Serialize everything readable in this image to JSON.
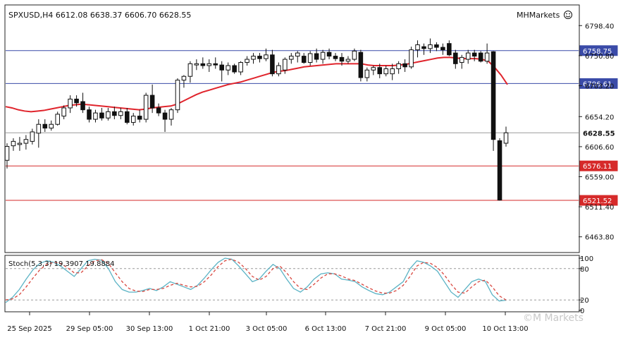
{
  "header": {
    "symbol_info": "SPXUSD,H4  6612.08 6638.37 6606.70 6628.55",
    "brand": "MHMarkets",
    "brand_icon": "smiley-icon",
    "watermark": "©M Markets"
  },
  "chart_data": [
    {
      "type": "candlestick",
      "symbol": "SPXUSD",
      "timeframe": "H4",
      "ohlc_readout": {
        "open": 6612.08,
        "high": 6638.37,
        "low": 6606.7,
        "close": 6628.55
      },
      "ylim": [
        6440,
        6830
      ],
      "y_ticks": [
        "6798.40",
        "6750.80",
        "6703.20",
        "6654.20",
        "6606.60",
        "6559.00",
        "6511.40",
        "6463.80"
      ],
      "x_tick_labels": [
        "25 Sep 2025",
        "29 Sep 05:00",
        "30 Sep 13:00",
        "1 Oct 21:00",
        "3 Oct 05:00",
        "6 Oct 13:00",
        "7 Oct 21:00",
        "9 Oct 05:00",
        "10 Oct 13:00"
      ],
      "candles": [
        {
          "o": 6585,
          "h": 6612,
          "l": 6572,
          "c": 6607
        },
        {
          "o": 6608,
          "h": 6620,
          "l": 6600,
          "c": 6615
        },
        {
          "o": 6610,
          "h": 6622,
          "l": 6600,
          "c": 6612
        },
        {
          "o": 6612,
          "h": 6625,
          "l": 6602,
          "c": 6618
        },
        {
          "o": 6615,
          "h": 6635,
          "l": 6610,
          "c": 6630
        },
        {
          "o": 6628,
          "h": 6650,
          "l": 6605,
          "c": 6642
        },
        {
          "o": 6642,
          "h": 6650,
          "l": 6630,
          "c": 6636
        },
        {
          "o": 6636,
          "h": 6648,
          "l": 6632,
          "c": 6642
        },
        {
          "o": 6642,
          "h": 6662,
          "l": 6640,
          "c": 6658
        },
        {
          "o": 6655,
          "h": 6672,
          "l": 6650,
          "c": 6668
        },
        {
          "o": 6668,
          "h": 6688,
          "l": 6660,
          "c": 6682
        },
        {
          "o": 6682,
          "h": 6688,
          "l": 6670,
          "c": 6676
        },
        {
          "o": 6678,
          "h": 6692,
          "l": 6660,
          "c": 6665
        },
        {
          "o": 6665,
          "h": 6670,
          "l": 6645,
          "c": 6650
        },
        {
          "o": 6650,
          "h": 6665,
          "l": 6645,
          "c": 6660
        },
        {
          "o": 6660,
          "h": 6668,
          "l": 6648,
          "c": 6652
        },
        {
          "o": 6652,
          "h": 6668,
          "l": 6648,
          "c": 6662
        },
        {
          "o": 6662,
          "h": 6670,
          "l": 6650,
          "c": 6656
        },
        {
          "o": 6656,
          "h": 6668,
          "l": 6650,
          "c": 6662
        },
        {
          "o": 6662,
          "h": 6668,
          "l": 6642,
          "c": 6645
        },
        {
          "o": 6645,
          "h": 6660,
          "l": 6640,
          "c": 6655
        },
        {
          "o": 6655,
          "h": 6665,
          "l": 6645,
          "c": 6650
        },
        {
          "o": 6650,
          "h": 6692,
          "l": 6645,
          "c": 6688
        },
        {
          "o": 6688,
          "h": 6705,
          "l": 6660,
          "c": 6668
        },
        {
          "o": 6668,
          "h": 6675,
          "l": 6655,
          "c": 6660
        },
        {
          "o": 6660,
          "h": 6665,
          "l": 6630,
          "c": 6650
        },
        {
          "o": 6650,
          "h": 6668,
          "l": 6640,
          "c": 6665
        },
        {
          "o": 6665,
          "h": 6715,
          "l": 6660,
          "c": 6712
        },
        {
          "o": 6712,
          "h": 6720,
          "l": 6700,
          "c": 6718
        },
        {
          "o": 6718,
          "h": 6742,
          "l": 6708,
          "c": 6738
        },
        {
          "o": 6736,
          "h": 6745,
          "l": 6728,
          "c": 6738
        },
        {
          "o": 6738,
          "h": 6748,
          "l": 6730,
          "c": 6735
        },
        {
          "o": 6735,
          "h": 6745,
          "l": 6725,
          "c": 6738
        },
        {
          "o": 6738,
          "h": 6748,
          "l": 6730,
          "c": 6736
        },
        {
          "o": 6736,
          "h": 6742,
          "l": 6710,
          "c": 6728
        },
        {
          "o": 6728,
          "h": 6740,
          "l": 6720,
          "c": 6735
        },
        {
          "o": 6735,
          "h": 6738,
          "l": 6722,
          "c": 6725
        },
        {
          "o": 6725,
          "h": 6742,
          "l": 6720,
          "c": 6740
        },
        {
          "o": 6740,
          "h": 6750,
          "l": 6735,
          "c": 6745
        },
        {
          "o": 6745,
          "h": 6755,
          "l": 6738,
          "c": 6750
        },
        {
          "o": 6750,
          "h": 6755,
          "l": 6740,
          "c": 6746
        },
        {
          "o": 6746,
          "h": 6762,
          "l": 6742,
          "c": 6752
        },
        {
          "o": 6752,
          "h": 6760,
          "l": 6718,
          "c": 6722
        },
        {
          "o": 6722,
          "h": 6740,
          "l": 6718,
          "c": 6735
        },
        {
          "o": 6728,
          "h": 6748,
          "l": 6722,
          "c": 6745
        },
        {
          "o": 6745,
          "h": 6755,
          "l": 6738,
          "c": 6750
        },
        {
          "o": 6750,
          "h": 6758,
          "l": 6740,
          "c": 6755
        },
        {
          "o": 6750,
          "h": 6755,
          "l": 6738,
          "c": 6740
        },
        {
          "o": 6740,
          "h": 6758,
          "l": 6735,
          "c": 6754
        },
        {
          "o": 6754,
          "h": 6762,
          "l": 6740,
          "c": 6745
        },
        {
          "o": 6745,
          "h": 6760,
          "l": 6738,
          "c": 6756
        },
        {
          "o": 6756,
          "h": 6762,
          "l": 6745,
          "c": 6750
        },
        {
          "o": 6750,
          "h": 6755,
          "l": 6742,
          "c": 6746
        },
        {
          "o": 6748,
          "h": 6755,
          "l": 6735,
          "c": 6742
        },
        {
          "o": 6742,
          "h": 6750,
          "l": 6738,
          "c": 6745
        },
        {
          "o": 6745,
          "h": 6762,
          "l": 6742,
          "c": 6758
        },
        {
          "o": 6756,
          "h": 6760,
          "l": 6710,
          "c": 6716
        },
        {
          "o": 6716,
          "h": 6732,
          "l": 6710,
          "c": 6728
        },
        {
          "o": 6728,
          "h": 6735,
          "l": 6720,
          "c": 6732
        },
        {
          "o": 6732,
          "h": 6738,
          "l": 6715,
          "c": 6722
        },
        {
          "o": 6722,
          "h": 6735,
          "l": 6718,
          "c": 6730
        },
        {
          "o": 6722,
          "h": 6738,
          "l": 6712,
          "c": 6730
        },
        {
          "o": 6730,
          "h": 6742,
          "l": 6722,
          "c": 6738
        },
        {
          "o": 6738,
          "h": 6745,
          "l": 6725,
          "c": 6733
        },
        {
          "o": 6733,
          "h": 6765,
          "l": 6730,
          "c": 6760
        },
        {
          "o": 6760,
          "h": 6775,
          "l": 6748,
          "c": 6768
        },
        {
          "o": 6765,
          "h": 6770,
          "l": 6752,
          "c": 6762
        },
        {
          "o": 6762,
          "h": 6778,
          "l": 6755,
          "c": 6768
        },
        {
          "o": 6768,
          "h": 6772,
          "l": 6758,
          "c": 6764
        },
        {
          "o": 6764,
          "h": 6770,
          "l": 6752,
          "c": 6760
        },
        {
          "o": 6770,
          "h": 6775,
          "l": 6750,
          "c": 6752
        },
        {
          "o": 6755,
          "h": 6760,
          "l": 6730,
          "c": 6738
        },
        {
          "o": 6740,
          "h": 6752,
          "l": 6730,
          "c": 6748
        },
        {
          "o": 6745,
          "h": 6760,
          "l": 6738,
          "c": 6755
        },
        {
          "o": 6755,
          "h": 6760,
          "l": 6742,
          "c": 6750
        },
        {
          "o": 6755,
          "h": 6758,
          "l": 6740,
          "c": 6742
        },
        {
          "o": 6742,
          "h": 6770,
          "l": 6738,
          "c": 6755
        },
        {
          "o": 6757,
          "h": 6758,
          "l": 6600,
          "c": 6618
        },
        {
          "o": 6616,
          "h": 6620,
          "l": 6521,
          "c": 6522
        },
        {
          "o": 6612.08,
          "h": 6638.37,
          "l": 6606.7,
          "c": 6628.55
        }
      ],
      "moving_average": [
        6670,
        6668,
        6665,
        6663,
        6662,
        6663,
        6664,
        6666,
        6668,
        6670,
        6672,
        6673,
        6674,
        6673,
        6672,
        6671,
        6670,
        6669,
        6668,
        6667,
        6666,
        6665,
        6666,
        6668,
        6669,
        6670,
        6671,
        6674,
        6679,
        6684,
        6689,
        6693,
        6696,
        6699,
        6702,
        6705,
        6707,
        6709,
        6712,
        6715,
        6718,
        6721,
        6724,
        6726,
        6727,
        6729,
        6731,
        6733,
        6734,
        6735,
        6736,
        6737,
        6738,
        6738,
        6738,
        6738,
        6738,
        6736,
        6735,
        6735,
        6735,
        6735,
        6736,
        6737,
        6739,
        6741,
        6743,
        6745,
        6747,
        6748,
        6748,
        6747,
        6746,
        6746,
        6746,
        6745,
        6742,
        6732,
        6720,
        6705
      ],
      "ma_color": "#e0242c",
      "levels": [
        {
          "value": 6758.75,
          "label": "6758.75",
          "color": "#3a4ba8"
        },
        {
          "value": 6706.61,
          "label": "6706.61",
          "color": "#3a4ba8"
        },
        {
          "value": 6628.55,
          "label": "6628.55",
          "color": "#9a9a9a"
        },
        {
          "value": 6576.11,
          "label": "6576.11",
          "color": "#d62a2a"
        },
        {
          "value": 6521.52,
          "label": "6521.52",
          "color": "#d62a2a"
        }
      ]
    },
    {
      "type": "line",
      "title": "Stoch(5,3,3) 19.3907 19.8884",
      "ylim": [
        0,
        100
      ],
      "y_ticks": [
        "100",
        "80",
        "20",
        "0"
      ],
      "levels": [
        80,
        20
      ],
      "series": [
        {
          "name": "%K",
          "color": "#5bb3c5",
          "style": "solid",
          "values": [
            15,
            25,
            40,
            60,
            78,
            90,
            95,
            92,
            85,
            75,
            65,
            80,
            95,
            98,
            96,
            80,
            55,
            40,
            35,
            35,
            38,
            42,
            38,
            45,
            55,
            50,
            45,
            40,
            48,
            62,
            78,
            92,
            100,
            98,
            85,
            70,
            55,
            60,
            75,
            88,
            80,
            60,
            42,
            35,
            45,
            60,
            70,
            72,
            70,
            60,
            58,
            55,
            45,
            38,
            32,
            30,
            35,
            45,
            55,
            80,
            95,
            92,
            85,
            75,
            55,
            35,
            25,
            40,
            55,
            60,
            55,
            30,
            18,
            19.39
          ]
        },
        {
          "name": "%D",
          "color": "#d9473f",
          "style": "dashed",
          "values": [
            20,
            22,
            30,
            45,
            62,
            78,
            88,
            92,
            90,
            82,
            72,
            72,
            85,
            95,
            97,
            90,
            72,
            55,
            42,
            37,
            36,
            40,
            40,
            42,
            48,
            52,
            48,
            45,
            46,
            55,
            68,
            84,
            95,
            98,
            92,
            80,
            65,
            58,
            65,
            80,
            85,
            72,
            55,
            42,
            40,
            50,
            62,
            70,
            70,
            66,
            60,
            57,
            50,
            43,
            37,
            33,
            33,
            38,
            48,
            65,
            85,
            92,
            90,
            82,
            68,
            50,
            35,
            33,
            45,
            55,
            58,
            45,
            28,
            19.89
          ]
        }
      ]
    }
  ]
}
